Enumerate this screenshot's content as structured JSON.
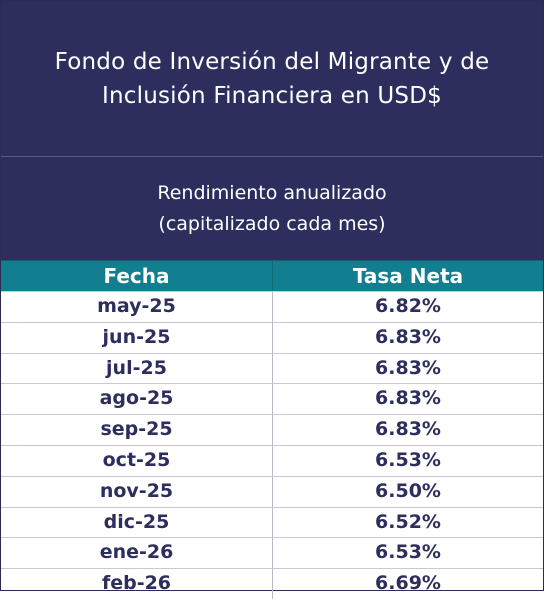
{
  "title": {
    "line1": "Fondo de Inversión del Migrante y de",
    "line2": "Inclusión Financiera en USD$"
  },
  "subtitle": {
    "line1": "Rendimiento anualizado",
    "line2": "(capitalizado cada mes)"
  },
  "table": {
    "headers": [
      "Fecha",
      "Tasa Neta"
    ],
    "rows": [
      {
        "fecha": "may-25",
        "tasa": "6.82%"
      },
      {
        "fecha": "jun-25",
        "tasa": "6.83%"
      },
      {
        "fecha": "jul-25",
        "tasa": "6.83%"
      },
      {
        "fecha": "ago-25",
        "tasa": "6.83%"
      },
      {
        "fecha": "sep-25",
        "tasa": "6.83%"
      },
      {
        "fecha": "oct-25",
        "tasa": "6.53%"
      },
      {
        "fecha": "nov-25",
        "tasa": "6.50%"
      },
      {
        "fecha": "dic-25",
        "tasa": "6.52%"
      },
      {
        "fecha": "ene-26",
        "tasa": "6.53%"
      },
      {
        "fecha": "feb-26",
        "tasa": "6.69%"
      }
    ]
  },
  "colors": {
    "navy": "#2d2e5e",
    "teal": "#117f8f",
    "white": "#ffffff"
  }
}
